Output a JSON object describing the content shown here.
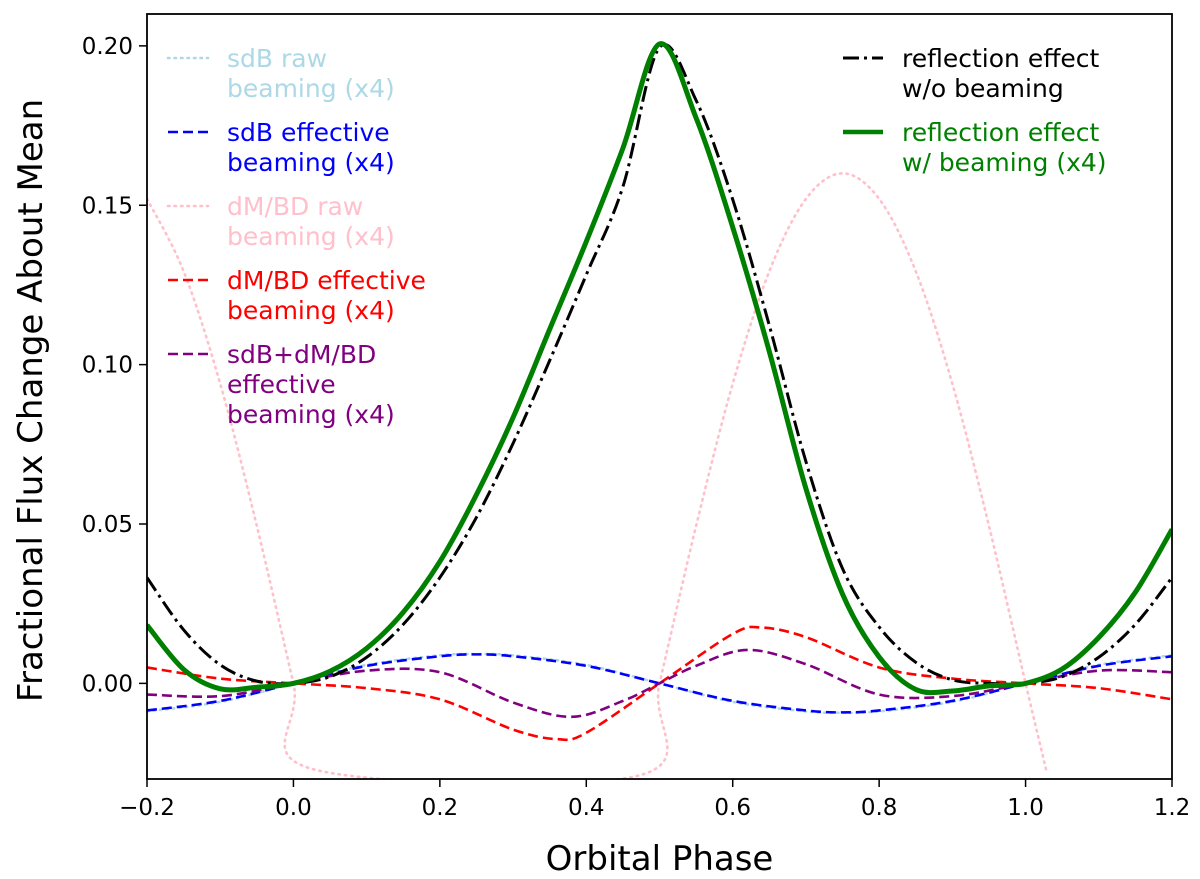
{
  "chart_data": {
    "type": "line",
    "title": "",
    "xlabel": "Orbital Phase",
    "ylabel": "Fractional Flux Change About Mean",
    "xlim": [
      -0.2,
      1.2
    ],
    "ylim": [
      -0.03,
      0.21
    ],
    "xticks": [
      -0.2,
      0.0,
      0.2,
      0.4,
      0.6,
      0.8,
      1.0,
      1.2
    ],
    "xtick_labels": [
      "−0.2",
      "0.0",
      "0.2",
      "0.4",
      "0.6",
      "0.8",
      "1.0",
      "1.2"
    ],
    "yticks": [
      0.0,
      0.05,
      0.1,
      0.15,
      0.2
    ],
    "ytick_labels": [
      "0.00",
      "0.05",
      "0.10",
      "0.15",
      "0.20"
    ],
    "grid": false,
    "legend_left": [
      {
        "key": "sdb_raw",
        "lines": [
          "sdB raw",
          "beaming (x4)"
        ]
      },
      {
        "key": "sdb_eff",
        "lines": [
          "sdB effective",
          "beaming (x4)"
        ]
      },
      {
        "key": "dm_raw",
        "lines": [
          "dM/BD raw",
          "beaming (x4)"
        ]
      },
      {
        "key": "dm_eff",
        "lines": [
          "dM/BD effective",
          "beaming (x4)"
        ]
      },
      {
        "key": "sum_eff",
        "lines": [
          "sdB+dM/BD",
          "effective",
          "beaming (x4)"
        ]
      }
    ],
    "legend_right": [
      {
        "key": "refl",
        "lines": [
          "reflection effect",
          "w/o beaming"
        ]
      },
      {
        "key": "refl_beam",
        "lines": [
          "reflection effect",
          "w/ beaming (x4)"
        ]
      }
    ],
    "series": [
      {
        "key": "sdb_raw",
        "name": "sdB raw beaming (x4)",
        "color": "#add8e6",
        "style": "dotted",
        "x": [
          -0.2,
          -0.1,
          0.0,
          0.1,
          0.2,
          0.25,
          0.3,
          0.4,
          0.5,
          0.6,
          0.7,
          0.75,
          0.8,
          0.9,
          1.0,
          1.1,
          1.2
        ],
        "y": [
          -0.0088,
          -0.0058,
          0.0,
          0.0058,
          0.0088,
          0.0092,
          0.0088,
          0.0058,
          0.0,
          -0.0058,
          -0.0088,
          -0.0092,
          -0.0088,
          -0.0058,
          0.0,
          0.0058,
          0.0088
        ]
      },
      {
        "key": "sdb_eff",
        "name": "sdB effective beaming (x4)",
        "color": "#0000ff",
        "style": "dashed",
        "x": [
          -0.2,
          -0.1,
          0.0,
          0.1,
          0.2,
          0.25,
          0.3,
          0.4,
          0.5,
          0.6,
          0.7,
          0.75,
          0.8,
          0.9,
          1.0,
          1.1,
          1.2
        ],
        "y": [
          -0.0085,
          -0.0055,
          0.0,
          0.0055,
          0.0085,
          0.0091,
          0.0085,
          0.0055,
          0.0,
          -0.0055,
          -0.0085,
          -0.0091,
          -0.0085,
          -0.0055,
          0.0,
          0.0055,
          0.0085
        ]
      },
      {
        "key": "dm_raw",
        "name": "dM/BD raw beaming (x4)",
        "color": "#ffc0cb",
        "style": "dotted",
        "x": [
          -0.2,
          -0.15,
          -0.1,
          -0.05,
          0.0,
          0.028,
          0.47,
          0.5,
          0.55,
          0.6,
          0.65,
          0.7,
          0.75,
          0.8,
          0.85,
          0.9,
          0.95,
          1.0,
          1.028
        ],
        "y": [
          0.152,
          0.1293,
          0.094,
          0.0494,
          0.0,
          -0.027,
          -0.029,
          0.0,
          0.0494,
          0.094,
          0.1293,
          0.152,
          0.16,
          0.152,
          0.1293,
          0.094,
          0.0494,
          0.0,
          -0.027
        ]
      },
      {
        "key": "dm_eff",
        "name": "dM/BD effective beaming (x4)",
        "color": "#ff0000",
        "style": "dashed",
        "x": [
          -0.2,
          -0.1,
          0.0,
          0.1,
          0.2,
          0.3,
          0.36,
          0.4,
          0.5,
          0.6,
          0.64,
          0.7,
          0.8,
          0.9,
          1.0,
          1.1,
          1.2
        ],
        "y": [
          0.005,
          0.0015,
          0.0,
          -0.0015,
          -0.005,
          -0.0145,
          -0.0175,
          -0.0155,
          0.0,
          0.0155,
          0.0175,
          0.0145,
          0.005,
          0.0015,
          0.0,
          -0.0015,
          -0.005
        ]
      },
      {
        "key": "sum_eff",
        "name": "sdB+dM/BD effective beaming (x4)",
        "color": "#800080",
        "style": "dashed",
        "x": [
          -0.2,
          -0.1,
          0.0,
          0.1,
          0.2,
          0.3,
          0.38,
          0.45,
          0.5,
          0.55,
          0.62,
          0.7,
          0.8,
          0.9,
          1.0,
          1.1,
          1.2
        ],
        "y": [
          -0.0035,
          -0.004,
          0.0,
          0.004,
          0.0035,
          -0.006,
          -0.0105,
          -0.0055,
          0.0,
          0.0055,
          0.0105,
          0.006,
          -0.0035,
          -0.004,
          0.0,
          0.004,
          0.0035
        ]
      },
      {
        "key": "refl",
        "name": "reflection effect w/o beaming",
        "color": "#000000",
        "style": "dashdot",
        "x": [
          -0.2,
          -0.15,
          -0.1,
          -0.05,
          0.0,
          0.05,
          0.1,
          0.15,
          0.2,
          0.25,
          0.3,
          0.35,
          0.4,
          0.45,
          0.5,
          0.55,
          0.6,
          0.65,
          0.7,
          0.75,
          0.8,
          0.85,
          0.9,
          0.95,
          1.0,
          1.05,
          1.1,
          1.15,
          1.2
        ],
        "y": [
          0.0332,
          0.0168,
          0.0058,
          0.0007,
          0.0,
          0.0021,
          0.0082,
          0.0185,
          0.0332,
          0.0521,
          0.0753,
          0.1013,
          0.1282,
          0.1558,
          0.1995,
          0.1829,
          0.1518,
          0.1123,
          0.0696,
          0.036,
          0.0177,
          0.0066,
          0.0011,
          0.0,
          0.0,
          0.0021,
          0.0082,
          0.0185,
          0.0332
        ]
      },
      {
        "key": "refl_beam",
        "name": "reflection effect w/ beaming (x4)",
        "color": "#008000",
        "style": "solid",
        "x": [
          -0.2,
          -0.15,
          -0.1,
          -0.05,
          0.0,
          0.05,
          0.1,
          0.15,
          0.2,
          0.25,
          0.3,
          0.35,
          0.4,
          0.45,
          0.5,
          0.55,
          0.6,
          0.65,
          0.7,
          0.75,
          0.8,
          0.85,
          0.9,
          0.95,
          1.0,
          1.05,
          1.1,
          1.15,
          1.2
        ],
        "y": [
          0.0183,
          0.0044,
          -0.0017,
          -0.0012,
          0.0,
          0.0038,
          0.011,
          0.0223,
          0.0382,
          0.0592,
          0.0834,
          0.1111,
          0.1386,
          0.1679,
          0.2006,
          0.1774,
          0.1431,
          0.1041,
          0.0611,
          0.028,
          0.0083,
          -0.0019,
          -0.0024,
          -0.0008,
          0.0,
          0.0045,
          0.0144,
          0.0286,
          0.0483
        ]
      }
    ]
  }
}
